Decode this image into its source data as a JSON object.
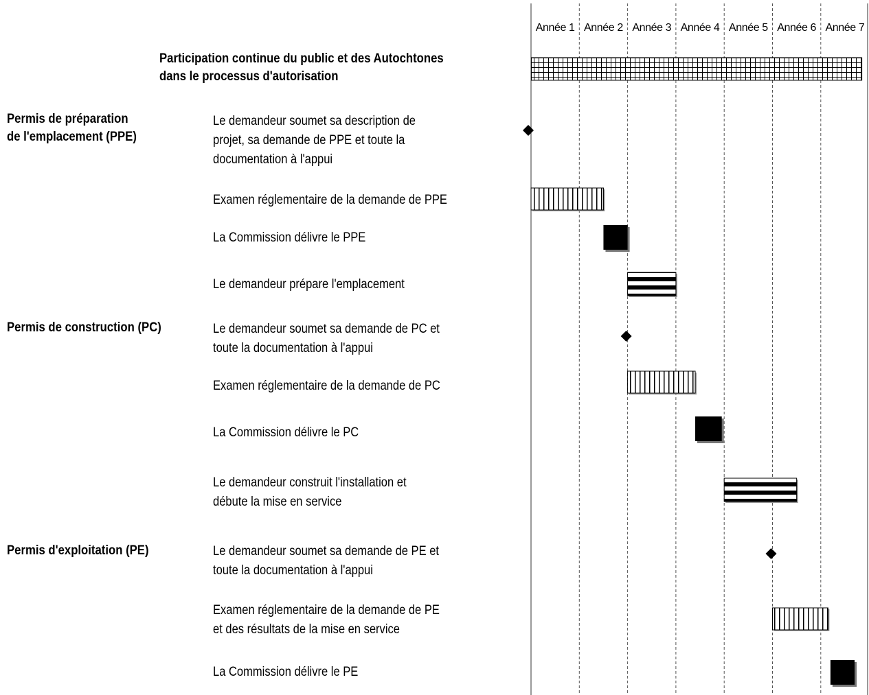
{
  "participation": {
    "line1": "Participation continue du public et des Autochtones",
    "line2": "dans le processus d'autorisation"
  },
  "years": [
    "Année 1",
    "Année 2",
    "Année 3",
    "Année 4",
    "Année 5",
    "Année 6",
    "Année 7"
  ],
  "sections": {
    "ppe": {
      "line1": "Permis de préparation",
      "line2": "de l'emplacement (PPE)"
    },
    "pc": {
      "line1": "Permis de construction (PC)"
    },
    "pe": {
      "line1": "Permis d'exploitation (PE)"
    }
  },
  "tasks": [
    {
      "lines": [
        "Le demandeur soumet sa description de",
        "projet, sa demande de PPE et toute la",
        "documentation à l'appui"
      ],
      "kind": "milestone",
      "start": 0
    },
    {
      "lines": [
        "Examen réglementaire de la demande de PPE"
      ],
      "kind": "review",
      "start": 0,
      "end": 1.5
    },
    {
      "lines": [
        "La Commission délivre le PPE"
      ],
      "kind": "decision",
      "start": 1.5,
      "end": 2
    },
    {
      "lines": [
        "Le demandeur prépare l'emplacement"
      ],
      "kind": "activity",
      "start": 2,
      "end": 3
    },
    {
      "lines": [
        "Le demandeur soumet sa demande de PC et",
        "toute la documentation à l'appui"
      ],
      "kind": "milestone",
      "start": 2
    },
    {
      "lines": [
        "Examen réglementaire de la demande de PC"
      ],
      "kind": "review",
      "start": 2,
      "end": 3.4
    },
    {
      "lines": [
        "La Commission délivre le PC"
      ],
      "kind": "decision",
      "start": 3.4,
      "end": 3.95
    },
    {
      "lines": [
        "Le demandeur construit l'installation et",
        "débute la mise en service"
      ],
      "kind": "activity",
      "start": 4,
      "end": 5.5
    },
    {
      "lines": [
        "Le demandeur soumet sa demande de PE et",
        "toute la documentation à l'appui"
      ],
      "kind": "milestone",
      "start": 5
    },
    {
      "lines": [
        "Examen réglementaire de la demande de PE",
        "et des résultats de la mise en service"
      ],
      "kind": "review",
      "start": 5,
      "end": 6.15
    },
    {
      "lines": [
        "La Commission délivre le PE"
      ],
      "kind": "decision",
      "start": 6.2,
      "end": 6.7
    }
  ],
  "participation_span": {
    "start": 0,
    "end": 7
  },
  "colors": {
    "ink": "#000000",
    "grid": "#555555",
    "bar_fill": "#ffffff"
  }
}
